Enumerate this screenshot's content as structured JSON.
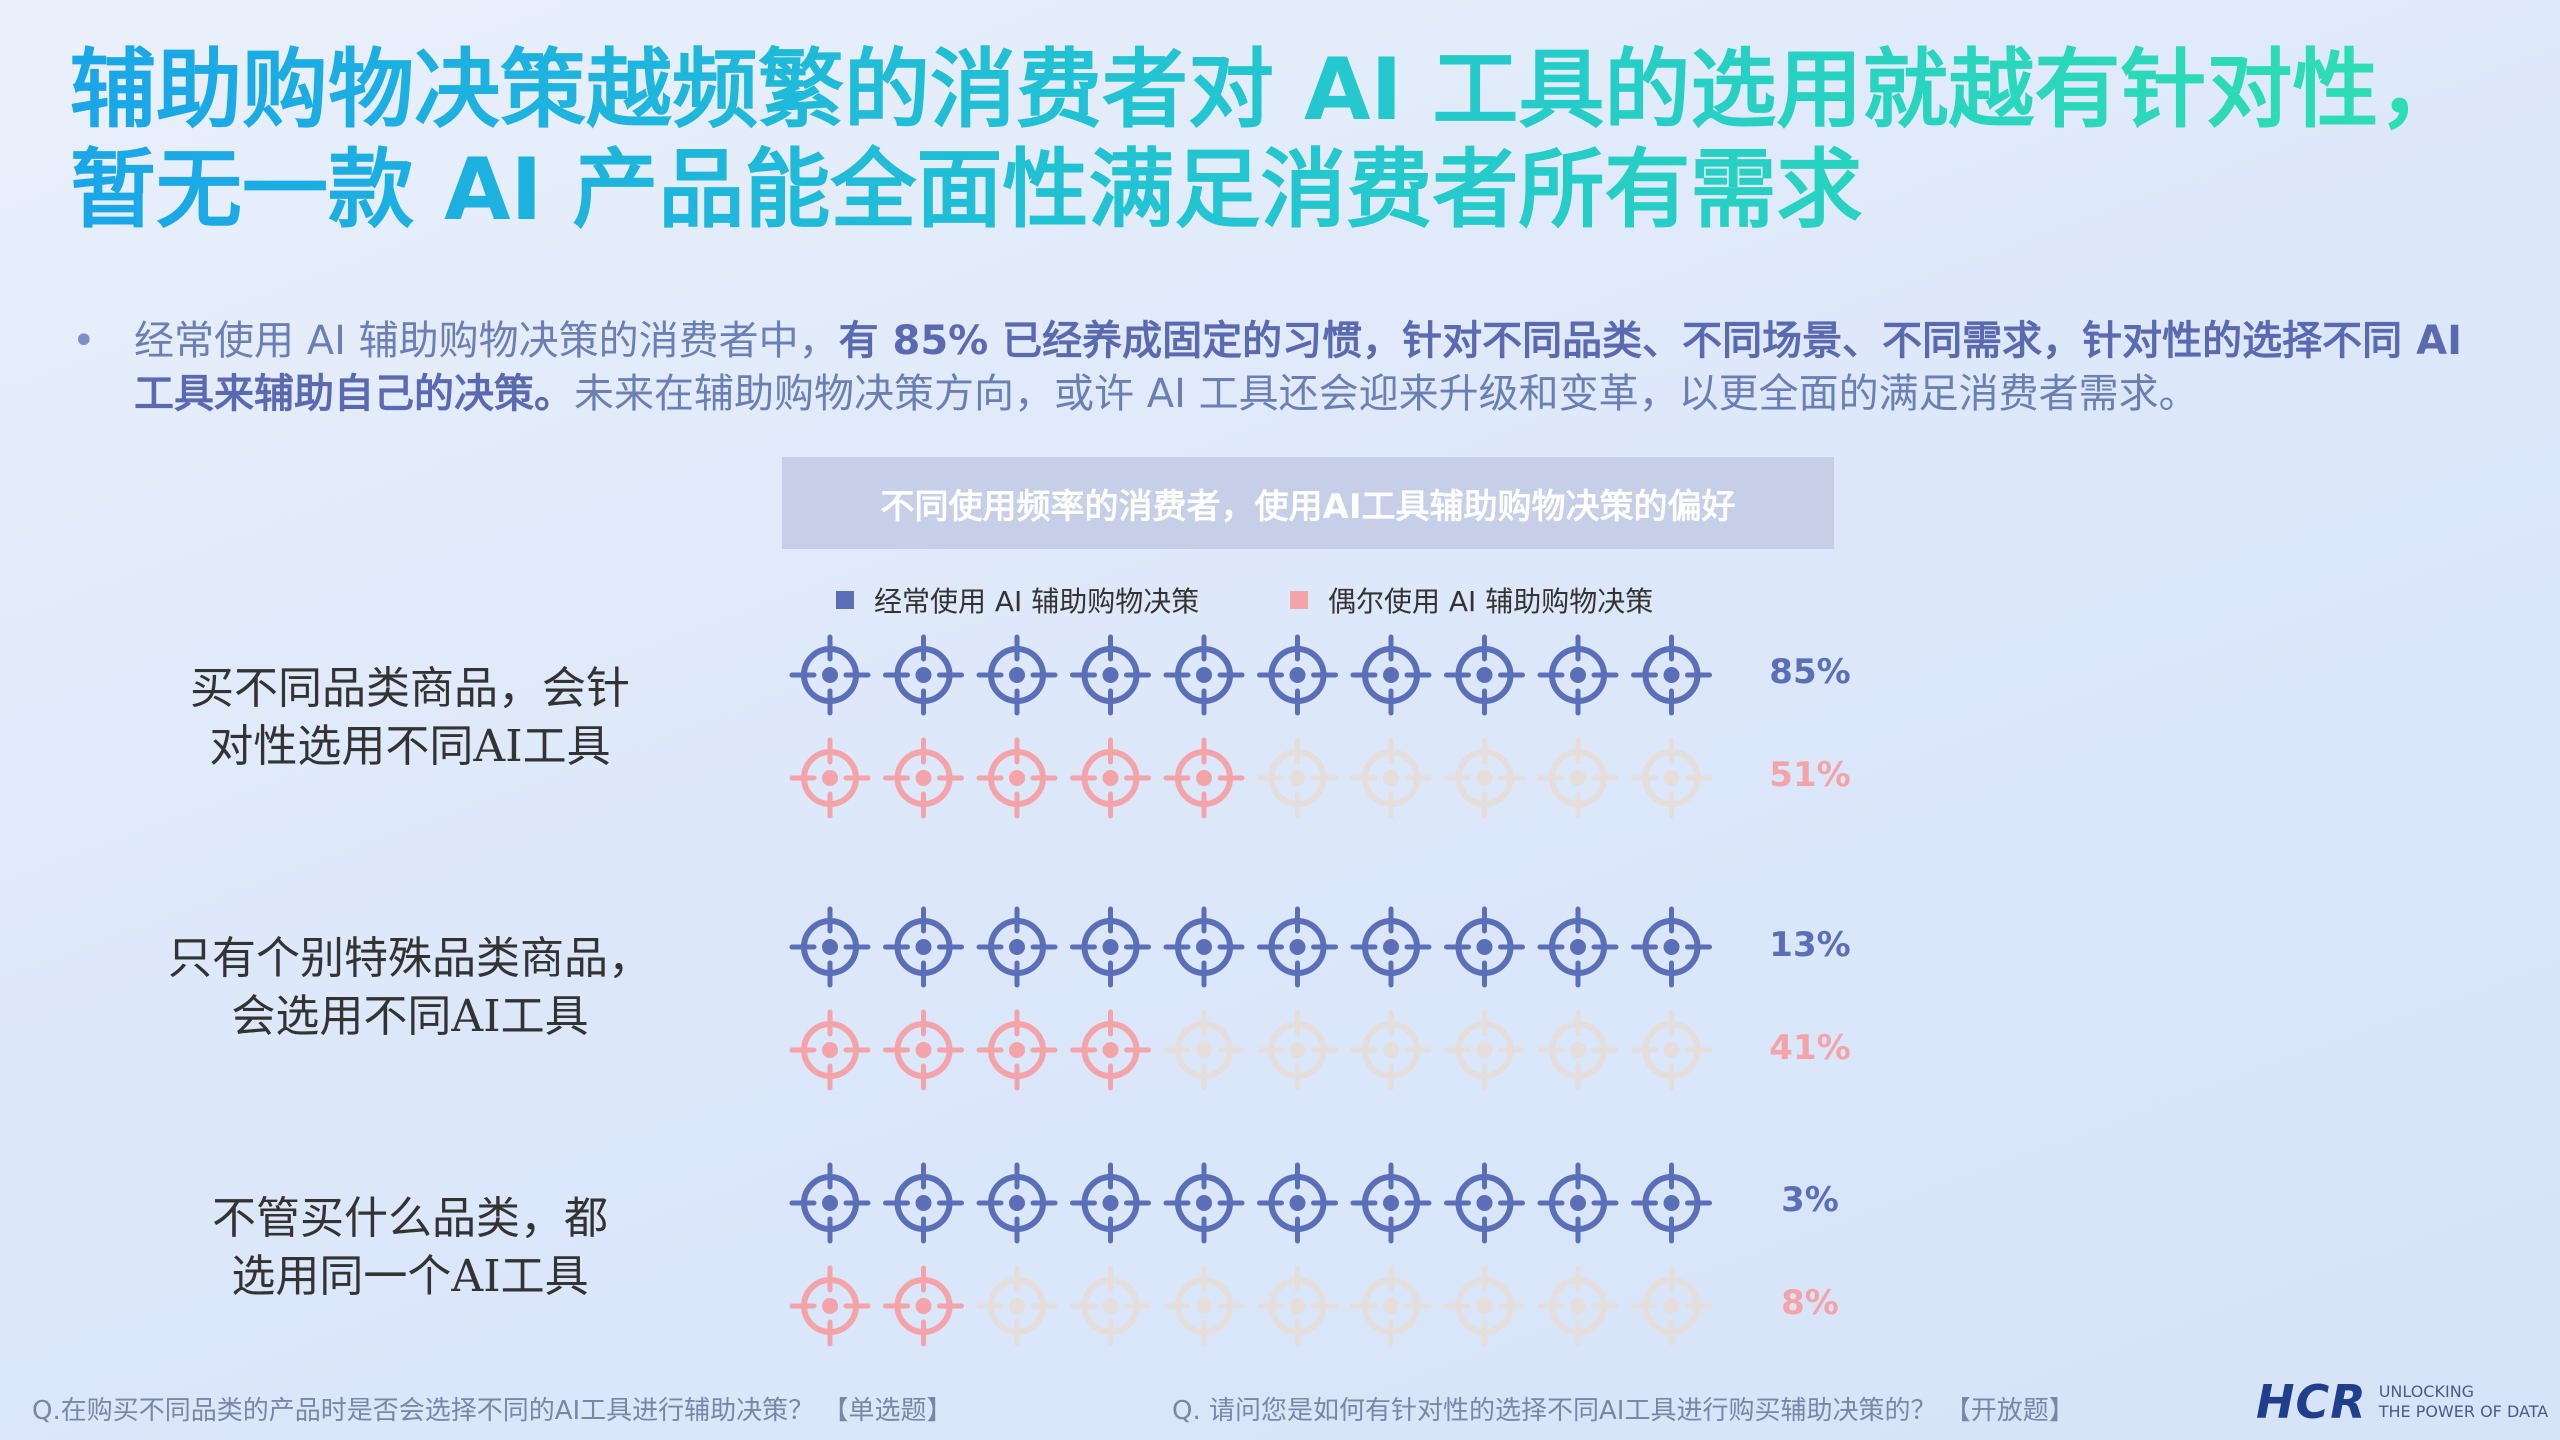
{
  "title": {
    "line1": "辅助购物决策越频繁的消费者对 AI 工具的选用就越有针对性，",
    "line2": "暂无一款 AI 产品能全面性满足消费者所有需求"
  },
  "bullet": {
    "marker": "•",
    "part1": "经常使用 AI 辅助购物决策的消费者中，",
    "bold": "有 85% 已经养成固定的习惯，针对不同品类、不同场景、不同需求，针对性的选择不同 AI 工具来辅助自己的决策。",
    "part2": "未来在辅助购物决策方向，或许 AI 工具还会迎来升级和变革，以更全面的满足消费者需求。"
  },
  "colors": {
    "frequent": "#5b6fb8",
    "occasional": "#f4a4a8",
    "inactive": "#e6dedb"
  },
  "chart_data": {
    "type": "pictograph",
    "title": "不同使用频率的消费者，使用AI工具辅助购物决策的偏好",
    "icon": "target-icon",
    "icons_per_row": 10,
    "categories": [
      "买不同品类商品，会针对性选用不同AI工具",
      "只有个别特殊品类商品，会选用不同AI工具",
      "不管买什么品类，都选用同一个AI工具"
    ],
    "series": [
      {
        "name": "经常使用 AI 辅助购物决策",
        "values": [
          85,
          13,
          3
        ],
        "labels": [
          "85%",
          "13%",
          "3%"
        ]
      },
      {
        "name": "偶尔使用 AI 辅助购物决策",
        "values": [
          51,
          41,
          8
        ],
        "labels": [
          "51%",
          "41%",
          "8%"
        ]
      }
    ],
    "filled_icons": [
      [
        10,
        10,
        10
      ],
      [
        5,
        4,
        2
      ]
    ]
  },
  "row_labels": [
    {
      "line1": "买不同品类商品，会针",
      "line2": "对性选用不同AI工具"
    },
    {
      "line1": "只有个别特殊品类商品，",
      "line2": "会选用不同AI工具"
    },
    {
      "line1": "不管买什么品类，都",
      "line2": "选用同一个AI工具"
    }
  ],
  "footer": {
    "q1": "Q.在购买不同品类的产品时是否会选择不同的AI工具进行辅助决策？ 【单选题】",
    "q2": "Q. 请问您是如何有针对性的选择不同AI工具进行购买辅助决策的？ 【开放题】"
  },
  "logo": {
    "name": "HCR",
    "tag1": "UNLOCKING",
    "tag2": "THE POWER OF DATA"
  }
}
